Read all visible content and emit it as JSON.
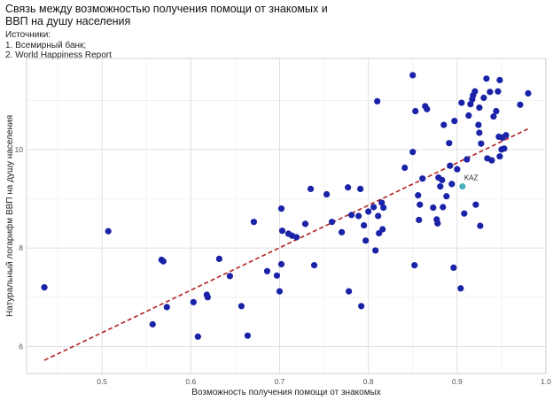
{
  "chart_data": {
    "type": "scatter",
    "title_lines": [
      "Связь между возможностью получения помощи от знакомых и",
      "ВВП на душу населения"
    ],
    "subtitle_lines": [
      "Источники:",
      "1. Всемирный банк;",
      "2. World Happiness Report"
    ],
    "xlabel": "Возможность получения помощи от знакомых",
    "ylabel": "Натуральный логарифм ВВП на душу населения",
    "xlim": [
      0.415,
      1.0
    ],
    "ylim": [
      5.45,
      11.85
    ],
    "xticks": [
      0.5,
      0.6,
      0.7,
      0.8,
      0.9,
      1.0
    ],
    "xtick_labels": [
      "0.5",
      "0.6",
      "0.7",
      "0.8",
      "0.9",
      "1.0"
    ],
    "yticks": [
      6,
      8,
      10
    ],
    "ytick_labels": [
      "6",
      "8",
      "10"
    ],
    "minor_xticks": [
      0.45,
      0.55,
      0.65,
      0.75,
      0.85,
      0.95
    ],
    "minor_yticks": [
      7,
      9,
      11
    ],
    "grid": true,
    "point_color": "#1a22a8",
    "highlight_color": "#4ab0c0",
    "trend_color": "#b22222",
    "trend_line": {
      "x": [
        0.435,
        0.98
      ],
      "y": [
        5.72,
        10.42
      ]
    },
    "highlight": {
      "label": "KAZ",
      "x": 0.906,
      "y": 9.25
    },
    "points": [
      {
        "x": 0.435,
        "y": 7.2
      },
      {
        "x": 0.507,
        "y": 8.34
      },
      {
        "x": 0.557,
        "y": 6.45
      },
      {
        "x": 0.567,
        "y": 7.76
      },
      {
        "x": 0.569,
        "y": 7.73
      },
      {
        "x": 0.573,
        "y": 6.8
      },
      {
        "x": 0.603,
        "y": 6.9
      },
      {
        "x": 0.608,
        "y": 6.2
      },
      {
        "x": 0.618,
        "y": 7.05
      },
      {
        "x": 0.619,
        "y": 7.0
      },
      {
        "x": 0.632,
        "y": 7.78
      },
      {
        "x": 0.644,
        "y": 7.43
      },
      {
        "x": 0.657,
        "y": 6.82
      },
      {
        "x": 0.664,
        "y": 6.22
      },
      {
        "x": 0.671,
        "y": 8.53
      },
      {
        "x": 0.686,
        "y": 7.53
      },
      {
        "x": 0.697,
        "y": 7.44
      },
      {
        "x": 0.7,
        "y": 7.12
      },
      {
        "x": 0.702,
        "y": 7.67
      },
      {
        "x": 0.702,
        "y": 8.8
      },
      {
        "x": 0.703,
        "y": 8.35
      },
      {
        "x": 0.71,
        "y": 8.29
      },
      {
        "x": 0.714,
        "y": 8.25
      },
      {
        "x": 0.719,
        "y": 8.22
      },
      {
        "x": 0.729,
        "y": 8.49
      },
      {
        "x": 0.735,
        "y": 9.2
      },
      {
        "x": 0.739,
        "y": 7.65
      },
      {
        "x": 0.753,
        "y": 9.09
      },
      {
        "x": 0.759,
        "y": 8.53
      },
      {
        "x": 0.77,
        "y": 8.32
      },
      {
        "x": 0.777,
        "y": 9.23
      },
      {
        "x": 0.778,
        "y": 7.12
      },
      {
        "x": 0.781,
        "y": 8.67
      },
      {
        "x": 0.789,
        "y": 8.65
      },
      {
        "x": 0.791,
        "y": 9.2
      },
      {
        "x": 0.792,
        "y": 6.82
      },
      {
        "x": 0.795,
        "y": 8.46
      },
      {
        "x": 0.797,
        "y": 8.15
      },
      {
        "x": 0.8,
        "y": 8.74
      },
      {
        "x": 0.806,
        "y": 8.83
      },
      {
        "x": 0.808,
        "y": 7.95
      },
      {
        "x": 0.81,
        "y": 10.98
      },
      {
        "x": 0.811,
        "y": 8.65
      },
      {
        "x": 0.812,
        "y": 8.3
      },
      {
        "x": 0.815,
        "y": 8.92
      },
      {
        "x": 0.816,
        "y": 8.38
      },
      {
        "x": 0.817,
        "y": 8.82
      },
      {
        "x": 0.841,
        "y": 9.63
      },
      {
        "x": 0.85,
        "y": 11.51
      },
      {
        "x": 0.85,
        "y": 9.95
      },
      {
        "x": 0.852,
        "y": 7.65
      },
      {
        "x": 0.853,
        "y": 10.78
      },
      {
        "x": 0.856,
        "y": 9.07
      },
      {
        "x": 0.857,
        "y": 8.57
      },
      {
        "x": 0.858,
        "y": 8.88
      },
      {
        "x": 0.861,
        "y": 9.41
      },
      {
        "x": 0.864,
        "y": 10.88
      },
      {
        "x": 0.866,
        "y": 10.82
      },
      {
        "x": 0.873,
        "y": 8.82
      },
      {
        "x": 0.877,
        "y": 8.58
      },
      {
        "x": 0.878,
        "y": 8.5
      },
      {
        "x": 0.879,
        "y": 9.43
      },
      {
        "x": 0.881,
        "y": 9.25
      },
      {
        "x": 0.883,
        "y": 9.38
      },
      {
        "x": 0.884,
        "y": 8.83
      },
      {
        "x": 0.885,
        "y": 10.5
      },
      {
        "x": 0.888,
        "y": 9.05
      },
      {
        "x": 0.891,
        "y": 10.13
      },
      {
        "x": 0.892,
        "y": 9.67
      },
      {
        "x": 0.894,
        "y": 9.3
      },
      {
        "x": 0.896,
        "y": 7.6
      },
      {
        "x": 0.897,
        "y": 10.58
      },
      {
        "x": 0.9,
        "y": 9.6
      },
      {
        "x": 0.904,
        "y": 7.18
      },
      {
        "x": 0.905,
        "y": 10.95
      },
      {
        "x": 0.908,
        "y": 8.7
      },
      {
        "x": 0.911,
        "y": 9.8
      },
      {
        "x": 0.913,
        "y": 10.69
      },
      {
        "x": 0.915,
        "y": 10.92
      },
      {
        "x": 0.917,
        "y": 11.02
      },
      {
        "x": 0.918,
        "y": 11.1
      },
      {
        "x": 0.92,
        "y": 11.18
      },
      {
        "x": 0.921,
        "y": 8.88
      },
      {
        "x": 0.924,
        "y": 10.5
      },
      {
        "x": 0.925,
        "y": 10.85
      },
      {
        "x": 0.925,
        "y": 10.34
      },
      {
        "x": 0.926,
        "y": 8.45
      },
      {
        "x": 0.927,
        "y": 10.12
      },
      {
        "x": 0.93,
        "y": 11.05
      },
      {
        "x": 0.933,
        "y": 11.44
      },
      {
        "x": 0.934,
        "y": 9.82
      },
      {
        "x": 0.937,
        "y": 11.17
      },
      {
        "x": 0.939,
        "y": 9.78
      },
      {
        "x": 0.941,
        "y": 10.67
      },
      {
        "x": 0.944,
        "y": 10.78
      },
      {
        "x": 0.946,
        "y": 11.18
      },
      {
        "x": 0.947,
        "y": 10.26
      },
      {
        "x": 0.948,
        "y": 11.41
      },
      {
        "x": 0.948,
        "y": 9.86
      },
      {
        "x": 0.95,
        "y": 10.0
      },
      {
        "x": 0.951,
        "y": 10.24
      },
      {
        "x": 0.953,
        "y": 10.02
      },
      {
        "x": 0.955,
        "y": 10.29
      },
      {
        "x": 0.971,
        "y": 10.91
      },
      {
        "x": 0.98,
        "y": 11.14
      }
    ]
  }
}
